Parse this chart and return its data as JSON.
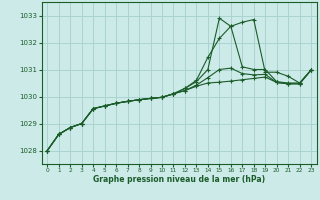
{
  "title": "Graphe pression niveau de la mer (hPa)",
  "background_color": "#cceae7",
  "grid_color": "#aad4d0",
  "line_color": "#1a5c2a",
  "x": [
    0,
    1,
    2,
    3,
    4,
    5,
    6,
    7,
    8,
    9,
    10,
    11,
    12,
    13,
    14,
    15,
    16,
    17,
    18,
    19,
    20,
    21,
    22,
    23
  ],
  "series": [
    [
      1028.0,
      1028.6,
      1028.85,
      1029.0,
      1029.55,
      1029.65,
      1029.75,
      1029.82,
      1029.88,
      1029.93,
      1029.97,
      1030.1,
      1030.22,
      1030.38,
      1030.5,
      1030.53,
      1030.57,
      1030.62,
      1030.67,
      1030.72,
      1030.52,
      1030.47,
      1030.47,
      1030.98
    ],
    [
      1028.0,
      1028.6,
      1028.85,
      1029.0,
      1029.55,
      1029.65,
      1029.75,
      1029.82,
      1029.88,
      1029.93,
      1029.97,
      1030.1,
      1030.22,
      1030.42,
      1030.7,
      1031.0,
      1031.05,
      1030.85,
      1030.8,
      1030.82,
      1030.52,
      1030.47,
      1030.47,
      1030.98
    ],
    [
      1028.0,
      1028.6,
      1028.85,
      1029.0,
      1029.55,
      1029.65,
      1029.75,
      1029.82,
      1029.88,
      1029.93,
      1029.97,
      1030.1,
      1030.3,
      1030.6,
      1031.45,
      1032.15,
      1032.6,
      1032.75,
      1032.85,
      1030.9,
      1030.9,
      1030.75,
      1030.5,
      1030.98
    ],
    [
      1028.0,
      1028.6,
      1028.85,
      1029.0,
      1029.55,
      1029.65,
      1029.75,
      1029.82,
      1029.88,
      1029.93,
      1029.97,
      1030.1,
      1030.3,
      1030.55,
      1031.0,
      1032.9,
      1032.6,
      1031.1,
      1031.0,
      1031.0,
      1030.55,
      1030.5,
      1030.5,
      1030.98
    ]
  ],
  "ylim": [
    1027.5,
    1033.5
  ],
  "yticks": [
    1028,
    1029,
    1030,
    1031,
    1032,
    1033
  ],
  "xlim": [
    -0.5,
    23.5
  ],
  "xticks": [
    0,
    1,
    2,
    3,
    4,
    5,
    6,
    7,
    8,
    9,
    10,
    11,
    12,
    13,
    14,
    15,
    16,
    17,
    18,
    19,
    20,
    21,
    22,
    23
  ]
}
